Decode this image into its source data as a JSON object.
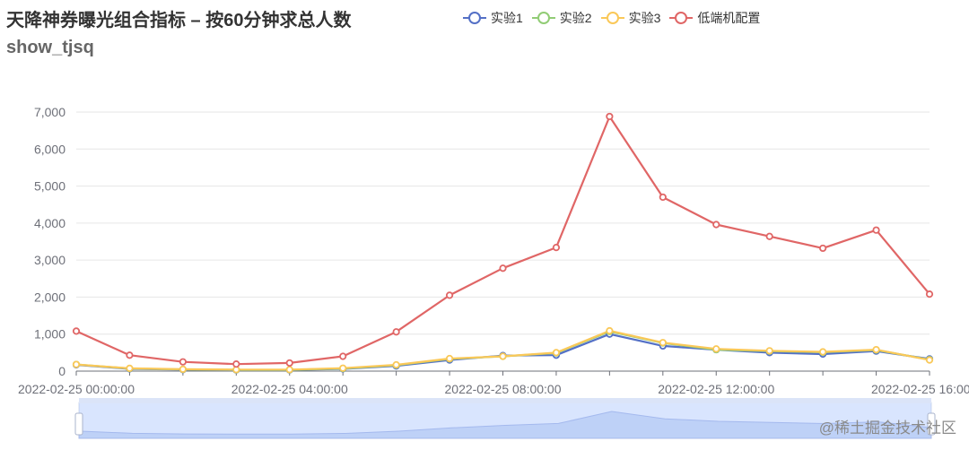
{
  "title": "天降神券曝光组合指标 – 按60分钟求总人数",
  "subtitle": "show_tjsq",
  "watermark": "@稀土掘金技术社区",
  "legend": [
    {
      "name": "实验1",
      "color": "#5470c6"
    },
    {
      "name": "实验2",
      "color": "#91cc75"
    },
    {
      "name": "实验3",
      "color": "#fac858"
    },
    {
      "name": "低端机配置",
      "color": "#e06666"
    }
  ],
  "chart_data": {
    "type": "line",
    "title": "天降神券曝光组合指标 – 按60分钟求总人数",
    "subtitle": "show_tjsq",
    "x": [
      "2022-02-25 00:00:00",
      "2022-02-25 01:00:00",
      "2022-02-25 02:00:00",
      "2022-02-25 03:00:00",
      "2022-02-25 04:00:00",
      "2022-02-25 05:00:00",
      "2022-02-25 06:00:00",
      "2022-02-25 07:00:00",
      "2022-02-25 08:00:00",
      "2022-02-25 09:00:00",
      "2022-02-25 10:00:00",
      "2022-02-25 11:00:00",
      "2022-02-25 12:00:00",
      "2022-02-25 13:00:00",
      "2022-02-25 14:00:00",
      "2022-02-25 15:00:00",
      "2022-02-25 16:00:00"
    ],
    "x_tick_labels": [
      "2022-02-25 00:00:00",
      "2022-02-25 04:00:00",
      "2022-02-25 08:00:00",
      "2022-02-25 12:00:00",
      "2022-02-25 16:00:00"
    ],
    "y_tick_labels": [
      "0",
      "1,000",
      "2,000",
      "3,000",
      "4,000",
      "5,000",
      "6,000",
      "7,000"
    ],
    "ylim": [
      0,
      7000
    ],
    "grid": true,
    "legend_position": "top",
    "series": [
      {
        "name": "实验1",
        "color": "#5470c6",
        "values": [
          170,
          60,
          40,
          30,
          30,
          60,
          140,
          300,
          420,
          430,
          1000,
          680,
          580,
          500,
          460,
          540,
          330
        ]
      },
      {
        "name": "实验2",
        "color": "#91cc75",
        "values": [
          180,
          70,
          45,
          35,
          35,
          70,
          160,
          330,
          400,
          490,
          1070,
          760,
          580,
          540,
          510,
          570,
          310
        ]
      },
      {
        "name": "实验3",
        "color": "#fac858",
        "values": [
          180,
          75,
          50,
          40,
          40,
          80,
          170,
          340,
          400,
          500,
          1090,
          770,
          600,
          550,
          520,
          580,
          300
        ]
      },
      {
        "name": "低端机配置",
        "color": "#e06666",
        "values": [
          1080,
          430,
          250,
          190,
          220,
          400,
          1060,
          2050,
          2780,
          3340,
          6880,
          4700,
          3960,
          3640,
          3320,
          3810,
          2080
        ]
      }
    ],
    "data_zoom": {
      "range": [
        0,
        1
      ]
    }
  }
}
